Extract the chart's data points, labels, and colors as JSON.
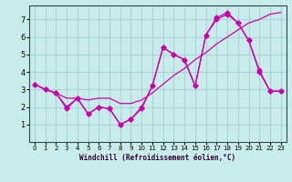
{
  "xlabel": "Windchill (Refroidissement éolien,°C)",
  "ylabel": "",
  "background_color": "#c8ecec",
  "grid_color": "#aad4d4",
  "line_color": "#cc00aa",
  "xlim": [
    0,
    23
  ],
  "ylim": [
    0,
    7.8
  ],
  "xticks": [
    0,
    1,
    2,
    3,
    4,
    5,
    6,
    7,
    8,
    9,
    10,
    11,
    12,
    13,
    14,
    15,
    16,
    17,
    18,
    19,
    20,
    21,
    22,
    23
  ],
  "yticks": [
    1,
    2,
    3,
    4,
    5,
    6,
    7
  ],
  "line1_x": [
    0,
    1,
    2,
    3,
    4,
    5,
    6,
    7,
    8,
    9,
    10,
    11,
    12,
    13,
    14,
    15,
    16,
    17,
    18,
    19,
    20,
    21,
    22,
    23
  ],
  "line1_y": [
    3.3,
    3.0,
    2.8,
    1.9,
    2.5,
    1.6,
    2.0,
    1.9,
    1.0,
    1.3,
    1.9,
    3.2,
    5.4,
    5.0,
    4.7,
    3.2,
    6.1,
    7.1,
    7.4,
    6.8,
    5.8,
    4.1,
    2.9,
    2.9
  ],
  "line2_x": [
    0,
    1,
    2,
    3,
    4,
    5,
    6,
    7,
    8,
    9,
    10,
    11,
    12,
    13,
    14,
    15,
    16,
    17,
    18,
    19,
    20,
    21,
    22,
    23
  ],
  "line2_y": [
    3.3,
    3.0,
    2.8,
    2.5,
    2.5,
    2.4,
    2.5,
    2.5,
    2.2,
    2.2,
    2.4,
    2.8,
    3.3,
    3.8,
    4.2,
    4.7,
    5.1,
    5.6,
    6.0,
    6.4,
    6.8,
    7.0,
    7.3,
    7.4
  ],
  "line3_x": [
    0,
    1,
    2,
    3,
    4,
    5,
    6,
    7,
    8,
    9,
    10,
    11,
    12,
    13,
    14,
    15,
    16,
    17,
    18,
    19,
    20,
    21,
    22,
    23
  ],
  "line3_y": [
    3.3,
    3.0,
    2.8,
    2.0,
    2.5,
    1.6,
    2.0,
    1.9,
    1.0,
    1.3,
    2.0,
    3.2,
    5.4,
    5.0,
    4.7,
    3.2,
    6.1,
    7.0,
    7.3,
    6.8,
    5.8,
    4.0,
    2.9,
    2.9
  ]
}
